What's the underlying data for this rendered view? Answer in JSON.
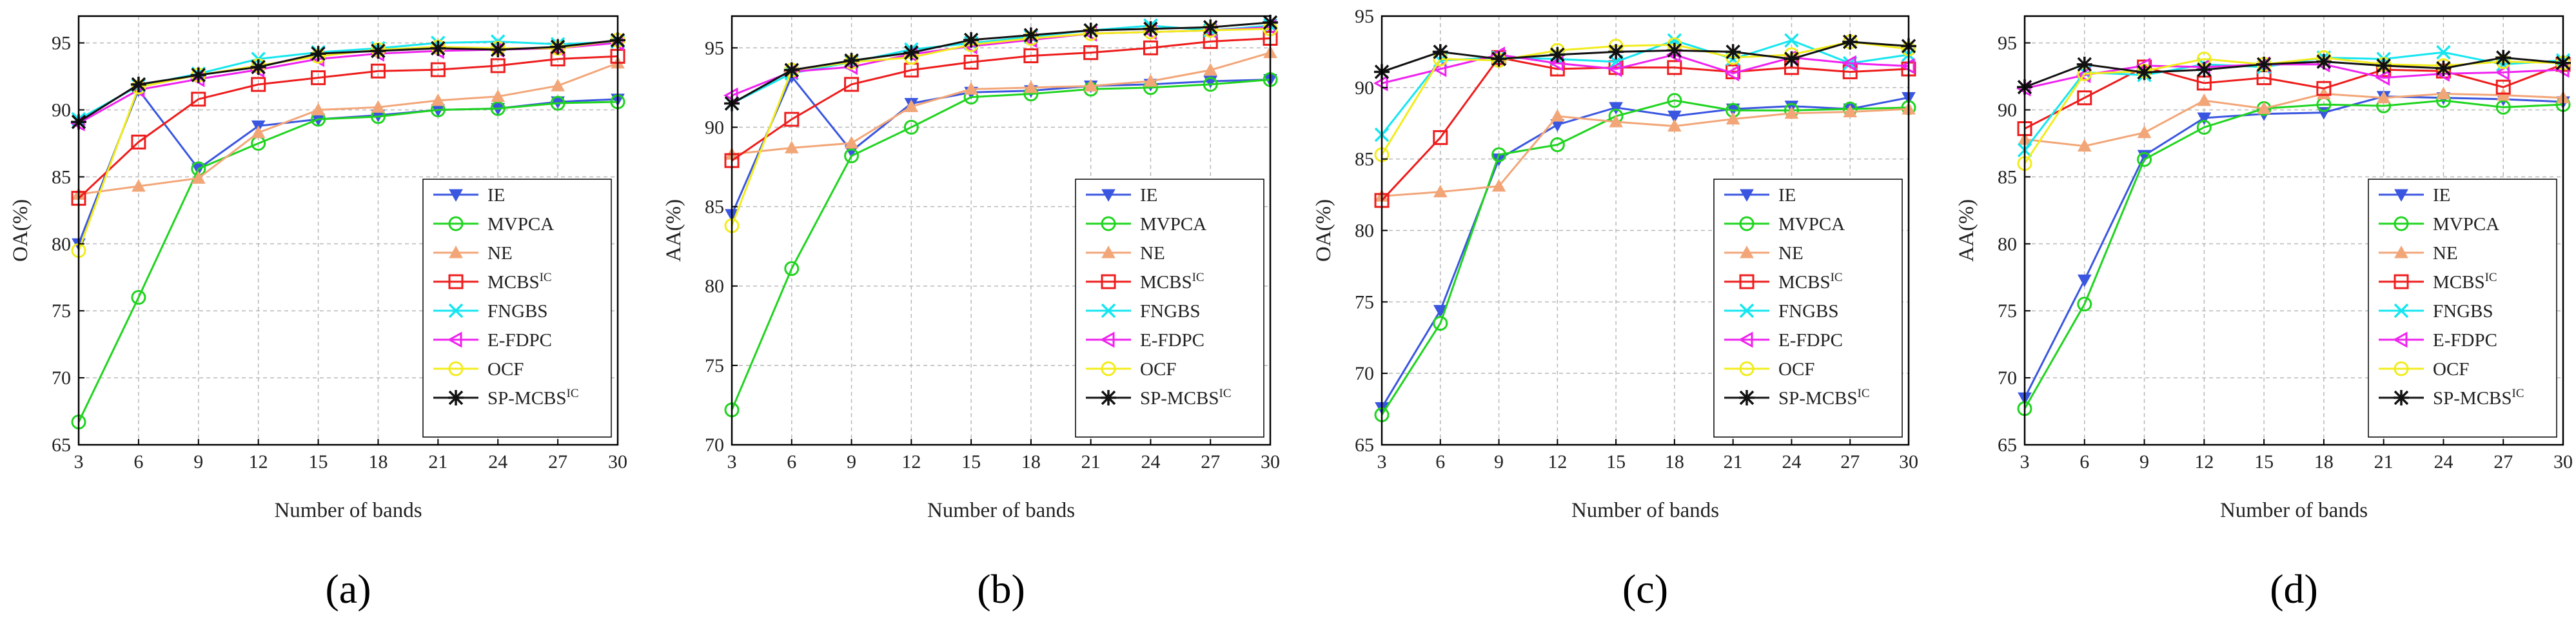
{
  "legend_items": [
    "IE",
    "MVPCA",
    "NE",
    "MCBS",
    "FNGBS",
    "E-FDPC",
    "OCF",
    "SP-MCBS"
  ],
  "legend_superscripts": [
    "",
    "",
    "",
    "IC",
    "",
    "",
    "",
    "IC"
  ],
  "styles": {
    "IE": {
      "color": "#3a56e0",
      "marker": "tri-down"
    },
    "MVPCA": {
      "color": "#1fd41f",
      "marker": "circle"
    },
    "NE": {
      "color": "#f2a678",
      "marker": "tri-up"
    },
    "MCBS": {
      "color": "#ee1c1c",
      "marker": "square"
    },
    "FNGBS": {
      "color": "#15e6f0",
      "marker": "x"
    },
    "E-FDPC": {
      "color": "#ef22ef",
      "marker": "tri-left"
    },
    "OCF": {
      "color": "#f2ec1c",
      "marker": "circle"
    },
    "SP-MCBS": {
      "color": "#111111",
      "marker": "star"
    }
  },
  "chart_data": [
    {
      "panel_label": "(a)",
      "type": "line",
      "xlabel": "Number of bands",
      "ylabel": "OA(%)",
      "x": [
        3,
        6,
        9,
        12,
        15,
        18,
        21,
        24,
        27,
        30
      ],
      "xticks": [
        "3",
        "6",
        "9",
        "12",
        "15",
        "18",
        "21",
        "24",
        "27",
        "30"
      ],
      "ylim": [
        65,
        97
      ],
      "yticks": [
        "65",
        "70",
        "75",
        "80",
        "85",
        "90",
        "95"
      ],
      "grid": true,
      "legend_position": "bottom-right",
      "series": [
        {
          "name": "IE",
          "values": [
            80.0,
            91.5,
            85.6,
            88.8,
            89.3,
            89.6,
            90.0,
            90.1,
            90.6,
            90.8
          ]
        },
        {
          "name": "MVPCA",
          "values": [
            66.7,
            76.0,
            85.6,
            87.5,
            89.3,
            89.5,
            90.0,
            90.1,
            90.5,
            90.6
          ]
        },
        {
          "name": "NE",
          "values": [
            83.7,
            84.3,
            84.9,
            88.3,
            90.0,
            90.2,
            90.7,
            91.0,
            91.8,
            93.5
          ]
        },
        {
          "name": "MCBS",
          "values": [
            83.4,
            87.6,
            90.8,
            91.9,
            92.4,
            92.9,
            93.0,
            93.3,
            93.8,
            94.0
          ]
        },
        {
          "name": "FNGBS",
          "values": [
            89.3,
            91.8,
            92.7,
            93.8,
            94.3,
            94.6,
            95.0,
            95.1,
            94.9,
            95.1
          ]
        },
        {
          "name": "E-FDPC",
          "values": [
            89.0,
            91.5,
            92.3,
            93.0,
            93.8,
            94.2,
            94.4,
            94.5,
            94.6,
            95.0
          ]
        },
        {
          "name": "OCF",
          "values": [
            79.5,
            91.7,
            92.6,
            93.3,
            94.0,
            94.5,
            94.7,
            94.6,
            94.6,
            95.2
          ]
        },
        {
          "name": "SP-MCBS",
          "values": [
            89.1,
            91.9,
            92.6,
            93.2,
            94.2,
            94.4,
            94.6,
            94.5,
            94.7,
            95.2
          ]
        }
      ]
    },
    {
      "panel_label": "(b)",
      "type": "line",
      "xlabel": "Number of bands",
      "ylabel": "AA(%)",
      "x": [
        3,
        6,
        9,
        12,
        15,
        18,
        21,
        24,
        27,
        30
      ],
      "xticks": [
        "3",
        "6",
        "9",
        "12",
        "15",
        "18",
        "21",
        "24",
        "27",
        "30"
      ],
      "ylim": [
        70,
        97
      ],
      "yticks": [
        "70",
        "75",
        "80",
        "85",
        "90",
        "95"
      ],
      "grid": true,
      "legend_position": "bottom-right",
      "series": [
        {
          "name": "IE",
          "values": [
            84.5,
            93.2,
            88.5,
            91.5,
            92.2,
            92.3,
            92.6,
            92.7,
            92.9,
            93.0
          ]
        },
        {
          "name": "MVPCA",
          "values": [
            72.2,
            81.1,
            88.2,
            90.0,
            91.9,
            92.1,
            92.4,
            92.5,
            92.7,
            93.0
          ]
        },
        {
          "name": "NE",
          "values": [
            88.3,
            88.7,
            89.0,
            91.3,
            92.4,
            92.5,
            92.6,
            92.9,
            93.6,
            94.7
          ]
        },
        {
          "name": "MCBS",
          "values": [
            87.9,
            90.5,
            92.7,
            93.6,
            94.1,
            94.5,
            94.7,
            95.0,
            95.4,
            95.6
          ]
        },
        {
          "name": "FNGBS",
          "values": [
            91.5,
            93.4,
            94.1,
            94.9,
            95.3,
            95.7,
            96.1,
            96.4,
            96.1,
            96.4
          ]
        },
        {
          "name": "E-FDPC",
          "values": [
            92.0,
            93.5,
            93.8,
            94.6,
            95.1,
            95.5,
            95.9,
            96.0,
            96.1,
            96.3
          ]
        },
        {
          "name": "OCF",
          "values": [
            83.8,
            93.6,
            94.1,
            94.4,
            95.2,
            95.6,
            95.9,
            96.0,
            96.1,
            96.2
          ]
        },
        {
          "name": "SP-MCBS",
          "values": [
            91.5,
            93.6,
            94.2,
            94.7,
            95.5,
            95.8,
            96.1,
            96.2,
            96.3,
            96.6
          ]
        }
      ]
    },
    {
      "panel_label": "(c)",
      "type": "line",
      "xlabel": "Number of bands",
      "ylabel": "OA(%)",
      "x": [
        3,
        6,
        9,
        12,
        15,
        18,
        21,
        24,
        27,
        30
      ],
      "xticks": [
        "3",
        "6",
        "9",
        "12",
        "15",
        "18",
        "21",
        "24",
        "27",
        "30"
      ],
      "ylim": [
        65,
        95
      ],
      "yticks": [
        "65",
        "70",
        "75",
        "80",
        "85",
        "90",
        "95"
      ],
      "grid": true,
      "legend_position": "bottom-right",
      "series": [
        {
          "name": "IE",
          "values": [
            67.6,
            74.4,
            85.0,
            87.4,
            88.6,
            88.0,
            88.5,
            88.7,
            88.5,
            89.3
          ]
        },
        {
          "name": "MVPCA",
          "values": [
            67.1,
            73.5,
            85.3,
            86.0,
            88.0,
            89.1,
            88.4,
            88.4,
            88.5,
            88.6
          ]
        },
        {
          "name": "NE",
          "values": [
            82.4,
            82.7,
            83.1,
            88.0,
            87.6,
            87.3,
            87.8,
            88.2,
            88.3,
            88.5
          ]
        },
        {
          "name": "MCBS",
          "values": [
            82.1,
            86.5,
            92.1,
            91.3,
            91.4,
            91.4,
            91.1,
            91.4,
            91.1,
            91.3
          ]
        },
        {
          "name": "FNGBS",
          "values": [
            86.7,
            91.9,
            92.1,
            92.0,
            91.8,
            93.3,
            92.0,
            93.3,
            91.7,
            92.3
          ]
        },
        {
          "name": "E-FDPC",
          "values": [
            90.3,
            91.3,
            92.3,
            91.7,
            91.3,
            92.3,
            91.0,
            92.1,
            91.7,
            91.5
          ]
        },
        {
          "name": "OCF",
          "values": [
            85.3,
            92.0,
            91.9,
            92.6,
            92.9,
            93.0,
            92.1,
            92.3,
            93.2,
            92.7
          ]
        },
        {
          "name": "SP-MCBS",
          "values": [
            91.1,
            92.5,
            92.0,
            92.3,
            92.5,
            92.6,
            92.5,
            92.0,
            93.2,
            92.9
          ]
        }
      ]
    },
    {
      "panel_label": "(d)",
      "type": "line",
      "xlabel": "Number of bands",
      "ylabel": "AA(%)",
      "x": [
        3,
        6,
        9,
        12,
        15,
        18,
        21,
        24,
        27,
        30
      ],
      "xticks": [
        "3",
        "6",
        "9",
        "12",
        "15",
        "18",
        "21",
        "24",
        "27",
        "30"
      ],
      "ylim": [
        65,
        97
      ],
      "yticks": [
        "65",
        "70",
        "75",
        "80",
        "85",
        "90",
        "95"
      ],
      "grid": true,
      "legend_position": "bottom-right",
      "series": [
        {
          "name": "IE",
          "values": [
            68.5,
            77.3,
            86.6,
            89.4,
            89.7,
            89.8,
            91.0,
            90.9,
            90.8,
            90.6
          ]
        },
        {
          "name": "MVPCA",
          "values": [
            67.7,
            75.5,
            86.3,
            88.7,
            90.1,
            90.4,
            90.3,
            90.7,
            90.2,
            90.4
          ]
        },
        {
          "name": "NE",
          "values": [
            87.8,
            87.3,
            88.3,
            90.7,
            90.1,
            91.2,
            90.9,
            91.2,
            91.1,
            90.9
          ]
        },
        {
          "name": "MCBS",
          "values": [
            88.6,
            90.9,
            93.2,
            92.0,
            92.4,
            91.6,
            93.0,
            92.9,
            91.7,
            93.4
          ]
        },
        {
          "name": "FNGBS",
          "values": [
            87.0,
            92.8,
            92.6,
            93.4,
            93.2,
            93.9,
            93.8,
            94.3,
            93.4,
            93.7
          ]
        },
        {
          "name": "E-FDPC",
          "values": [
            91.6,
            92.6,
            93.3,
            93.2,
            93.4,
            93.4,
            92.4,
            92.7,
            92.8,
            93.0
          ]
        },
        {
          "name": "OCF",
          "values": [
            86.0,
            92.7,
            92.9,
            93.8,
            93.4,
            93.9,
            93.4,
            93.3,
            93.6,
            93.5
          ]
        },
        {
          "name": "SP-MCBS",
          "values": [
            91.7,
            93.4,
            92.8,
            93.0,
            93.4,
            93.6,
            93.3,
            93.1,
            93.9,
            93.5
          ]
        }
      ]
    }
  ]
}
